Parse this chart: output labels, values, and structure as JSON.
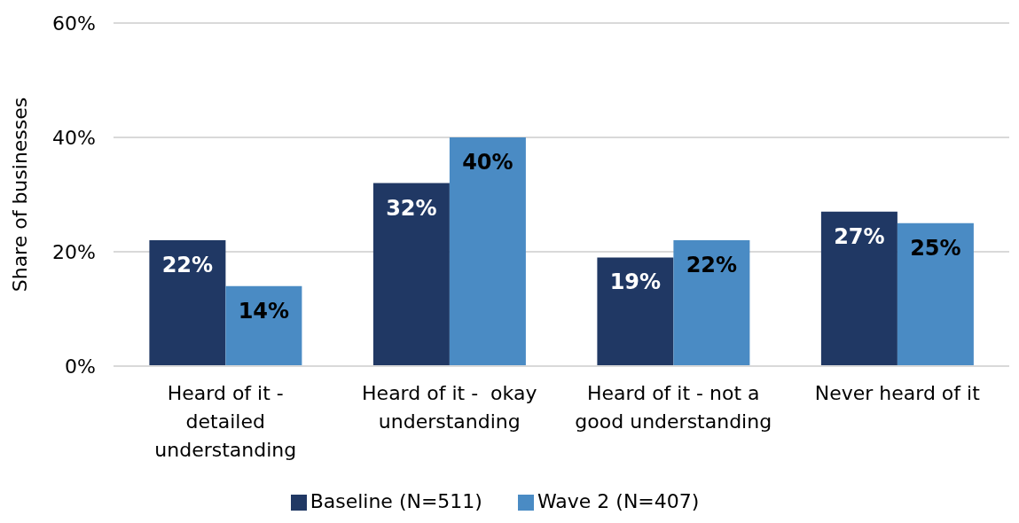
{
  "chart_data": {
    "type": "bar",
    "ylabel": "Share of businesses",
    "categories": [
      "Heard of it - detailed understanding",
      "Heard of it -  okay understanding",
      "Heard of it - not a good understanding",
      "Never heard of it"
    ],
    "series": [
      {
        "name": "Baseline (N=511)",
        "color": "#203864",
        "values": [
          22,
          32,
          19,
          27
        ],
        "value_labels": [
          "22%",
          "32%",
          "19%",
          "27%"
        ]
      },
      {
        "name": "Wave 2 (N=407)",
        "color": "#4a8bc4",
        "values": [
          14,
          40,
          22,
          25
        ],
        "value_labels": [
          "14%",
          "40%",
          "22%",
          "25%"
        ]
      }
    ],
    "ylim": [
      0,
      60
    ],
    "yticks": [
      {
        "value": 0,
        "label": "0%"
      },
      {
        "value": 20,
        "label": "20%"
      },
      {
        "value": 40,
        "label": "40%"
      },
      {
        "value": 60,
        "label": "60%"
      }
    ],
    "grid": "y",
    "legend": "bottom"
  }
}
